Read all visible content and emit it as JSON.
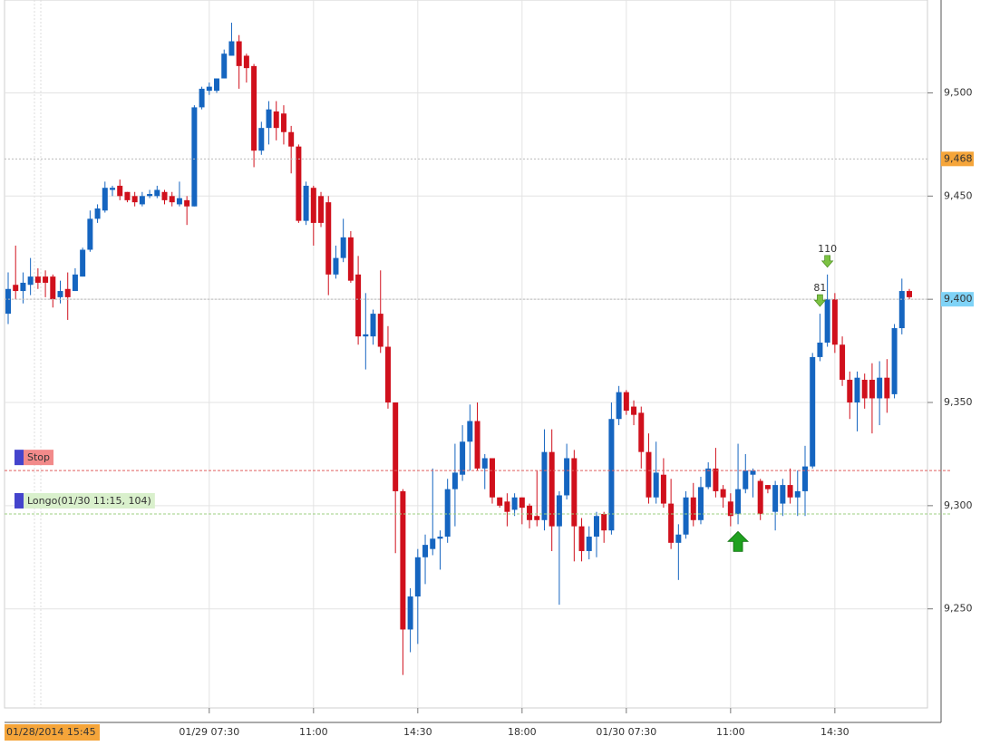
{
  "chart_data": {
    "type": "candlestick",
    "categories": [
      "01/28/2014 15:45",
      null,
      null,
      null,
      null,
      null,
      null,
      null,
      null,
      null,
      null,
      null,
      null,
      null,
      null,
      null,
      null,
      null,
      null,
      null,
      null,
      null,
      null,
      null,
      null,
      null,
      null,
      "01/29 07:30",
      null,
      null,
      null,
      null,
      null,
      null,
      null,
      null,
      null,
      null,
      null,
      null,
      null,
      "11:00",
      null,
      null,
      null,
      null,
      null,
      null,
      null,
      null,
      null,
      null,
      null,
      null,
      null,
      "14:30",
      null,
      null,
      null,
      null,
      null,
      null,
      null,
      null,
      null,
      null,
      null,
      null,
      null,
      "18:00",
      null,
      null,
      null,
      null,
      null,
      null,
      null,
      null,
      null,
      null,
      null,
      null,
      null,
      "01/30 07:30",
      null,
      null,
      null,
      null,
      null,
      null,
      null,
      null,
      null,
      null,
      null,
      null,
      null,
      "11:00",
      null,
      null,
      null,
      null,
      null,
      null,
      null,
      null,
      null,
      null,
      null,
      null,
      null,
      "14:30",
      null,
      null,
      null,
      null,
      null,
      null,
      null,
      null,
      null,
      null
    ],
    "open": [
      9393,
      9407,
      9404,
      9407,
      9411,
      9411,
      9411,
      9401,
      9405,
      9404,
      9411,
      9424,
      9439,
      9443,
      9453,
      9455,
      9452,
      9450,
      9446,
      9450,
      9450,
      9452,
      9450,
      9446,
      9448,
      9445,
      9493,
      9501,
      9501,
      9507,
      9518,
      9525,
      9518,
      9513,
      9472,
      9483,
      9491,
      9490,
      9481,
      9474,
      9438,
      9454,
      9450,
      9447,
      9412,
      9420,
      9430,
      9412,
      9382,
      9382,
      9393,
      9377,
      9350,
      9307,
      9240,
      9256,
      9275,
      9279,
      9284,
      9285,
      9308,
      9315,
      9331,
      9341,
      9318,
      9323,
      9304,
      9302,
      9298,
      9304,
      9300,
      9295,
      9293,
      9326,
      9290,
      9305,
      9323,
      9290,
      9278,
      9285,
      9296,
      9288,
      9342,
      9355,
      9348,
      9345,
      9326,
      9304,
      9315,
      9301,
      9282,
      9286,
      9304,
      9293,
      9309,
      9318,
      9308,
      9302,
      9296,
      9308,
      9315,
      9312,
      9310,
      9297,
      9301,
      9310,
      9304,
      9307,
      9319,
      9372,
      9379,
      9400,
      9378,
      9361,
      9350,
      9361,
      9361,
      9352,
      9362,
      9354,
      9386,
      9404
    ],
    "high": [
      9413,
      9426,
      9413,
      9420,
      9415,
      9414,
      9412,
      9409,
      9413,
      9415,
      9425,
      9443,
      9446,
      9457,
      9455,
      9458,
      9452,
      9452,
      9452,
      9453,
      9455,
      9453,
      9452,
      9457,
      9450,
      9494,
      9503,
      9505,
      9507,
      9521,
      9534,
      9528,
      9519,
      9514,
      9486,
      9496,
      9496,
      9494,
      9484,
      9475,
      9457,
      9455,
      9452,
      9450,
      9426,
      9439,
      9433,
      9421,
      9403,
      9395,
      9414,
      9387,
      9350,
      9308,
      9260,
      9279,
      9286,
      9318,
      9288,
      9313,
      9330,
      9339,
      9349,
      9350,
      9325,
      9323,
      9304,
      9306,
      9306,
      9304,
      9301,
      9317,
      9337,
      9337,
      9307,
      9330,
      9327,
      9294,
      9290,
      9297,
      9297,
      9350,
      9358,
      9356,
      9351,
      9348,
      9335,
      9331,
      9323,
      9313,
      9291,
      9307,
      9311,
      9314,
      9321,
      9328,
      9310,
      9306,
      9330,
      9325,
      9318,
      9313,
      9310,
      9312,
      9313,
      9318,
      9317,
      9329,
      9374,
      9393,
      9412,
      9403,
      9382,
      9365,
      9365,
      9364,
      9369,
      9370,
      9371,
      9388,
      9410,
      9405
    ],
    "low": [
      9388,
      9400,
      9398,
      9402,
      9405,
      9401,
      9396,
      9398,
      9390,
      9404,
      9411,
      9423,
      9437,
      9442,
      9450,
      9448,
      9447,
      9445,
      9445,
      9449,
      9449,
      9446,
      9445,
      9445,
      9436,
      9445,
      9492,
      9499,
      9500,
      9507,
      9518,
      9502,
      9505,
      9464,
      9470,
      9475,
      9477,
      9475,
      9461,
      9437,
      9436,
      9426,
      9435,
      9402,
      9410,
      9418,
      9408,
      9378,
      9366,
      9378,
      9374,
      9347,
      9277,
      9218,
      9229,
      9233,
      9262,
      9276,
      9269,
      9282,
      9290,
      9312,
      9317,
      9317,
      9308,
      9301,
      9299,
      9290,
      9295,
      9291,
      9289,
      9290,
      9288,
      9278,
      9252,
      9303,
      9273,
      9273,
      9274,
      9275,
      9282,
      9286,
      9339,
      9344,
      9339,
      9318,
      9301,
      9301,
      9299,
      9279,
      9264,
      9284,
      9290,
      9291,
      9308,
      9304,
      9299,
      9290,
      9291,
      9306,
      9304,
      9293,
      9306,
      9288,
      9295,
      9301,
      9295,
      9295,
      9318,
      9370,
      9377,
      9374,
      9358,
      9342,
      9336,
      9347,
      9335,
      9339,
      9345,
      9352,
      9383,
      9400
    ],
    "close": [
      9405,
      9404,
      9408,
      9411,
      9408,
      9408,
      9400,
      9404,
      9401,
      9412,
      9424,
      9439,
      9444,
      9454,
      9454,
      9450,
      9448,
      9447,
      9450,
      9451,
      9453,
      9448,
      9447,
      9449,
      9445,
      9493,
      9502,
      9503,
      9507,
      9519,
      9525,
      9513,
      9512,
      9472,
      9483,
      9492,
      9483,
      9481,
      9474,
      9438,
      9455,
      9437,
      9437,
      9412,
      9420,
      9430,
      9409,
      9382,
      9383,
      9393,
      9377,
      9350,
      9307,
      9240,
      9256,
      9275,
      9281,
      9284,
      9285,
      9308,
      9316,
      9331,
      9341,
      9318,
      9323,
      9304,
      9300,
      9297,
      9304,
      9299,
      9293,
      9293,
      9326,
      9290,
      9305,
      9323,
      9290,
      9278,
      9285,
      9295,
      9288,
      9342,
      9355,
      9346,
      9344,
      9326,
      9304,
      9316,
      9301,
      9282,
      9286,
      9304,
      9293,
      9309,
      9318,
      9307,
      9304,
      9295,
      9308,
      9317,
      9317,
      9296,
      9308,
      9310,
      9310,
      9304,
      9307,
      9319,
      9372,
      9379,
      9400,
      9378,
      9361,
      9350,
      9362,
      9352,
      9352,
      9362,
      9352,
      9386,
      9404,
      9401
    ],
    "up_color": "#1565c0",
    "down_color": "#d0101c",
    "ylim": [
      9202,
      9545
    ],
    "yticks": [
      {
        "value": 9250,
        "label": "9,250"
      },
      {
        "value": 9300,
        "label": "9,300"
      },
      {
        "value": 9350,
        "label": "9,350"
      },
      {
        "value": 9400,
        "label": "9,400"
      },
      {
        "value": 9450,
        "label": "9,450"
      },
      {
        "value": 9500,
        "label": "9,500"
      }
    ],
    "grid": true,
    "price_markers": [
      {
        "value": 9468,
        "label": "9,468",
        "color": "#f5a53a"
      },
      {
        "value": 9400,
        "label": "9,400",
        "color": "#7fd3f7"
      }
    ],
    "orders": [
      {
        "label": "Stop",
        "value": 9317,
        "color": "#e06060",
        "fill": "#f28a8a"
      },
      {
        "label": "Longo(01/30 11:15, 104)",
        "value": 9296,
        "color": "#9ccf80",
        "fill": "#d9f0cc"
      }
    ],
    "signals": [
      {
        "label": "81",
        "at": 109,
        "direction": "down"
      },
      {
        "label": "110",
        "at": 110,
        "direction": "down"
      },
      {
        "at": 98,
        "direction": "up"
      }
    ]
  }
}
